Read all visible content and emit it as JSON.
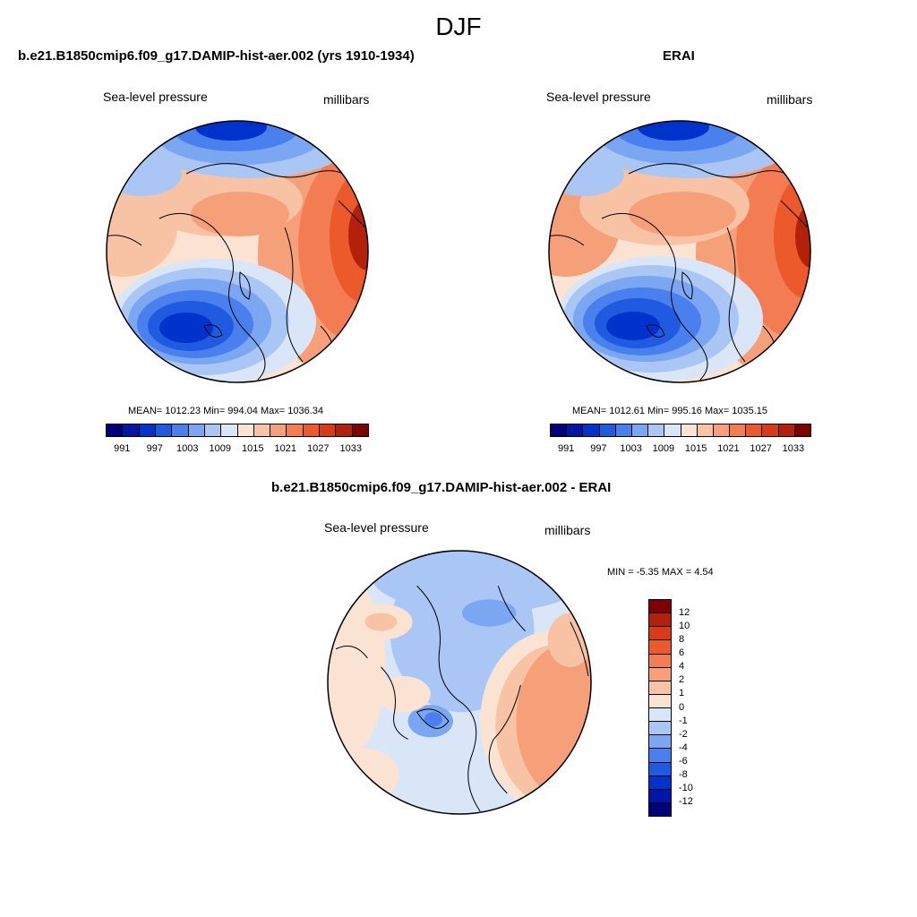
{
  "title": "DJF",
  "variable": "Sea-level pressure",
  "units": "millibars",
  "panels": {
    "model": {
      "case": "b.e21.B1850cmip6.f09_g17.DAMIP-hist-aer.002 (yrs 1910-1934)",
      "stats": "MEAN= 1012.23  Min= 994.04  Max= 1036.34"
    },
    "obs": {
      "case": "ERAI",
      "stats": "MEAN= 1012.61  Min= 995.16  Max= 1035.15"
    },
    "diff": {
      "case": "b.e21.B1850cmip6.f09_g17.DAMIP-hist-aer.002 - ERAI",
      "stats": "MIN =  -5.35 MAX =   4.54"
    }
  },
  "colorbar_abs": {
    "colors": [
      "#00007f",
      "#0016a6",
      "#0033cc",
      "#1f5ae0",
      "#4a80ee",
      "#7aa6f2",
      "#a9c6f5",
      "#d8e6f8",
      "#fbe3d4",
      "#f8c3a4",
      "#f6a07a",
      "#f37c52",
      "#ec5a2b",
      "#d83b15",
      "#b3210a",
      "#7f0000"
    ],
    "labels": [
      "991",
      "997",
      "1003",
      "1009",
      "1015",
      "1021",
      "1027",
      "1033"
    ]
  },
  "colorbar_diff": {
    "colors": [
      "#7f0000",
      "#b3210a",
      "#d83b15",
      "#ec5a2b",
      "#f37c52",
      "#f6a07a",
      "#f8c3a4",
      "#fbe3d4",
      "#d8e6f8",
      "#a9c6f5",
      "#7aa6f2",
      "#4a80ee",
      "#1f5ae0",
      "#0033cc",
      "#0016a6",
      "#00007f"
    ],
    "labels": [
      "12",
      "10",
      "8",
      "6",
      "4",
      "2",
      "1",
      "0",
      "-1",
      "-2",
      "-4",
      "-6",
      "-8",
      "-10",
      "-12"
    ]
  }
}
